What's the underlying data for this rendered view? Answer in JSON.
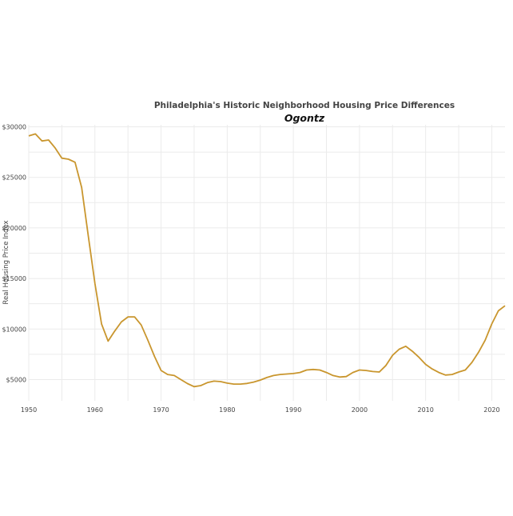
{
  "chart_data": {
    "type": "line",
    "title": "Philadelphia's Historic Neighborhood Housing Price Differences",
    "subtitle": "Ogontz",
    "xlabel": "",
    "ylabel": "Real Housing Price Index",
    "xlim": [
      1950,
      2022
    ],
    "ylim": [
      2900,
      30200
    ],
    "grid": true,
    "x_ticks": [
      1950,
      1960,
      1970,
      1980,
      1990,
      2000,
      2010,
      2020
    ],
    "x_tick_labels": [
      "1950",
      "1960",
      "1970",
      "1980",
      "1990",
      "2000",
      "2010",
      "2020"
    ],
    "y_ticks": [
      5000,
      10000,
      15000,
      20000,
      25000,
      30000
    ],
    "y_tick_labels": [
      "$5000",
      "$10000",
      "$15000",
      "$20000",
      "$25000",
      "$30000"
    ],
    "series": [
      {
        "color": "#c9962e",
        "x": [
          1950,
          1951,
          1952,
          1953,
          1954,
          1955,
          1956,
          1957,
          1958,
          1959,
          1960,
          1961,
          1962,
          1963,
          1964,
          1965,
          1966,
          1967,
          1968,
          1969,
          1970,
          1971,
          1972,
          1973,
          1974,
          1975,
          1976,
          1977,
          1978,
          1979,
          1980,
          1981,
          1982,
          1983,
          1984,
          1985,
          1986,
          1987,
          1988,
          1989,
          1990,
          1991,
          1992,
          1993,
          1994,
          1995,
          1996,
          1997,
          1998,
          1999,
          2000,
          2001,
          2002,
          2003,
          2004,
          2005,
          2006,
          2007,
          2008,
          2009,
          2010,
          2011,
          2012,
          2013,
          2014,
          2015,
          2016,
          2017,
          2018,
          2019,
          2020,
          2021,
          2022
        ],
        "values": [
          29100,
          29300,
          28600,
          28700,
          27900,
          26900,
          26800,
          26500,
          24000,
          19200,
          14500,
          10500,
          8800,
          9800,
          10700,
          11200,
          11200,
          10400,
          8900,
          7300,
          5900,
          5500,
          5400,
          5000,
          4600,
          4300,
          4400,
          4700,
          4850,
          4800,
          4650,
          4550,
          4550,
          4620,
          4750,
          4950,
          5200,
          5400,
          5500,
          5550,
          5600,
          5700,
          5950,
          6000,
          5950,
          5700,
          5400,
          5250,
          5300,
          5700,
          5950,
          5900,
          5800,
          5750,
          6400,
          7400,
          8000,
          8300,
          7800,
          7200,
          6500,
          6050,
          5700,
          5450,
          5500,
          5750,
          5950,
          6700,
          7700,
          8900,
          10500,
          11800,
          12300
        ]
      }
    ]
  }
}
